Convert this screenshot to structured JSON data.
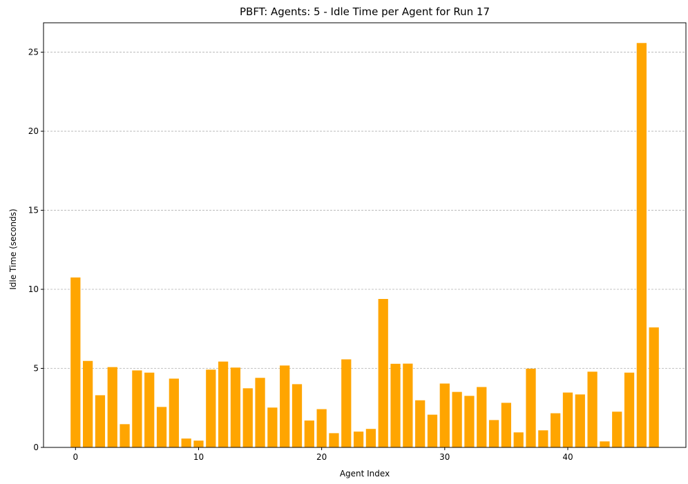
{
  "chart_data": {
    "type": "bar",
    "title": "PBFT: Agents: 5 - Idle Time per Agent for Run 17",
    "xlabel": "Agent Index",
    "ylabel": "Idle Time (seconds)",
    "x": [
      0,
      1,
      2,
      3,
      4,
      5,
      6,
      7,
      8,
      9,
      10,
      11,
      12,
      13,
      14,
      15,
      16,
      17,
      18,
      19,
      20,
      21,
      22,
      23,
      24,
      25,
      26,
      27,
      28,
      29,
      30,
      31,
      32,
      33,
      34,
      35,
      36,
      37,
      38,
      39,
      40,
      41,
      42,
      43,
      44,
      45,
      46,
      47
    ],
    "values": [
      10.75,
      5.47,
      3.3,
      5.08,
      1.47,
      4.87,
      4.73,
      2.56,
      4.35,
      0.56,
      0.43,
      4.92,
      5.43,
      5.05,
      3.74,
      4.4,
      2.52,
      5.18,
      4.0,
      1.7,
      2.42,
      0.9,
      5.57,
      1.0,
      1.17,
      9.39,
      5.29,
      5.3,
      2.98,
      2.07,
      4.04,
      3.51,
      3.26,
      3.82,
      1.73,
      2.82,
      0.95,
      4.98,
      1.08,
      2.16,
      3.47,
      3.35,
      4.79,
      0.38,
      2.26,
      4.73,
      25.58,
      7.59
    ],
    "xlim": [
      -2.6,
      49.6
    ],
    "ylim": [
      0,
      26.86
    ],
    "xticks": [
      0,
      10,
      20,
      30,
      40
    ],
    "yticks": [
      0,
      5,
      10,
      15,
      20,
      25
    ],
    "grid": "y-dashed",
    "bar_color": "#ffa500"
  }
}
